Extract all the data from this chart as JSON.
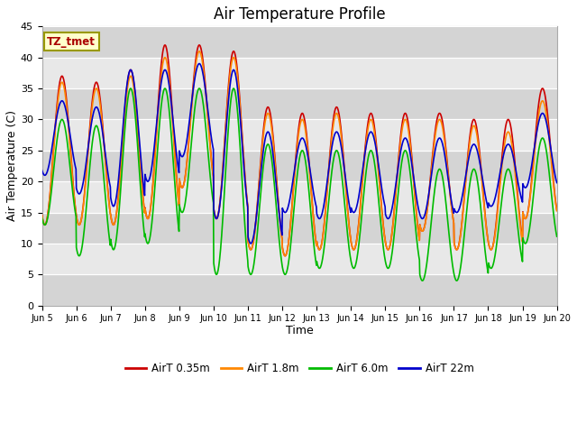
{
  "title": "Air Temperature Profile",
  "xlabel": "Time",
  "ylabel": "Air Temperature (C)",
  "annotation": "TZ_tmet",
  "ylim": [
    0,
    45
  ],
  "colors": {
    "AirT_035m": "#cc0000",
    "AirT_18m": "#ff8800",
    "AirT_60m": "#00bb00",
    "AirT_22m": "#0000cc"
  },
  "legend_labels": [
    "AirT 0.35m",
    "AirT 1.8m",
    "AirT 6.0m",
    "AirT 22m"
  ],
  "plot_bg_color": "#e8e8e8",
  "band_color_dark": "#d4d4d4",
  "band_color_light": "#e8e8e8",
  "title_fontsize": 12,
  "label_fontsize": 9,
  "annotation_fontcolor": "#aa0000",
  "annotation_bgcolor": "#ffffcc",
  "annotation_edgecolor": "#999900",
  "yticks": [
    0,
    5,
    10,
    15,
    20,
    25,
    30,
    35,
    40,
    45
  ],
  "peaks_035": [
    37,
    36,
    38,
    42,
    42,
    41,
    32,
    31,
    32,
    31,
    31,
    31,
    30,
    30,
    35
  ],
  "trough_035": [
    13,
    13,
    13,
    14,
    19,
    14,
    9,
    8,
    9,
    9,
    9,
    12,
    9,
    9,
    14
  ],
  "peaks_18": [
    36,
    35,
    37,
    40,
    41,
    40,
    31,
    30,
    31,
    30,
    30,
    30,
    29,
    28,
    33
  ],
  "trough_18": [
    13,
    13,
    13,
    14,
    19,
    14,
    9,
    8,
    9,
    9,
    9,
    12,
    9,
    9,
    14
  ],
  "peaks_60": [
    30,
    29,
    35,
    35,
    35,
    35,
    26,
    25,
    25,
    25,
    25,
    22,
    22,
    22,
    27
  ],
  "trough_60": [
    13,
    8,
    9,
    10,
    15,
    5,
    5,
    5,
    6,
    6,
    6,
    4,
    4,
    6,
    10
  ],
  "peaks_22": [
    33,
    32,
    38,
    38,
    39,
    38,
    28,
    27,
    28,
    28,
    27,
    27,
    26,
    26,
    31
  ],
  "trough_22": [
    21,
    18,
    16,
    20,
    24,
    14,
    10,
    15,
    14,
    15,
    14,
    14,
    15,
    16,
    19
  ]
}
